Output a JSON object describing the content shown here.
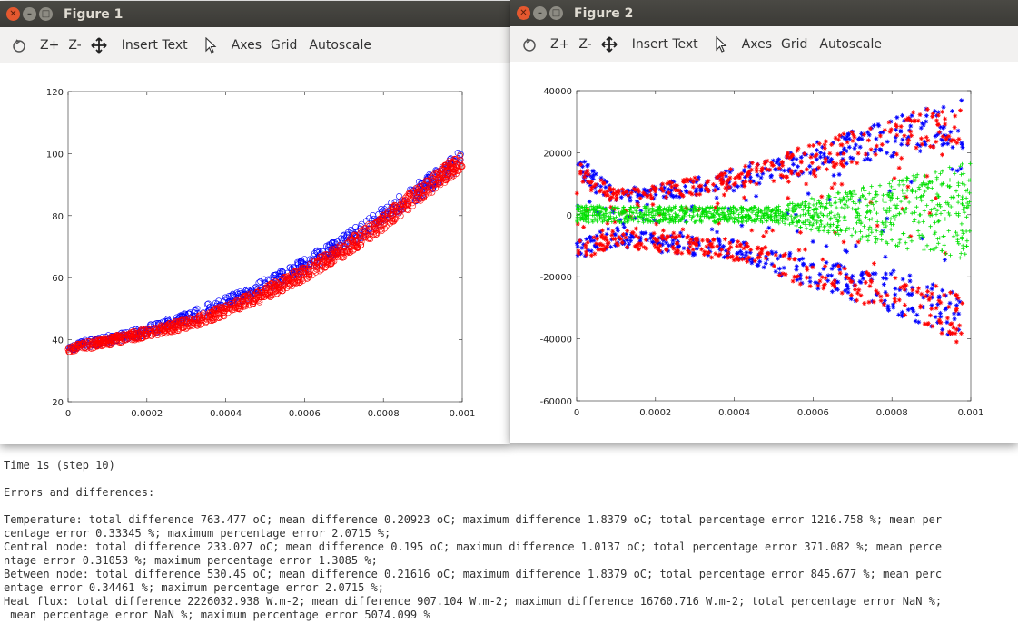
{
  "windows": [
    {
      "title": "Figure 1",
      "toolbar": {
        "zoom_in": "Z+",
        "zoom_out": "Z-",
        "insert_text": "Insert Text",
        "axes": "Axes",
        "grid": "Grid",
        "autoscale": "Autoscale"
      }
    },
    {
      "title": "Figure 2",
      "toolbar": {
        "zoom_in": "Z+",
        "zoom_out": "Z-",
        "insert_text": "Insert Text",
        "axes": "Axes",
        "grid": "Grid",
        "autoscale": "Autoscale"
      }
    }
  ],
  "chart_data": [
    {
      "type": "scatter",
      "xlim": [
        0,
        0.001
      ],
      "ylim": [
        20,
        120
      ],
      "xticks": [
        "0",
        "0.0002",
        "0.0004",
        "0.0006",
        "0.0008",
        "0.001"
      ],
      "yticks": [
        "20",
        "40",
        "60",
        "80",
        "100",
        "120"
      ],
      "grid": false,
      "series": [
        {
          "marker": "circle",
          "color": "#0000ff",
          "x": [
            0,
            0.0001,
            0.0002,
            0.0003,
            0.0004,
            0.0005,
            0.0006,
            0.0007,
            0.0008,
            0.0009,
            0.001
          ],
          "y": [
            37.5,
            40,
            43,
            47,
            52,
            57.5,
            64,
            71.5,
            80,
            89,
            98.5
          ]
        },
        {
          "marker": "circle",
          "color": "#ff0000",
          "x": [
            0,
            0.0001,
            0.0002,
            0.0003,
            0.0004,
            0.0005,
            0.0006,
            0.0007,
            0.0008,
            0.0009,
            0.001
          ],
          "y": [
            37,
            39.5,
            42,
            45,
            49.5,
            55,
            61.5,
            69,
            78,
            88,
            98
          ]
        }
      ]
    },
    {
      "type": "scatter",
      "xlim": [
        0,
        0.001
      ],
      "ylim": [
        -60000,
        40000
      ],
      "xticks": [
        "0",
        "0.0002",
        "0.0004",
        "0.0006",
        "0.0008",
        "0.001"
      ],
      "yticks": [
        "-60000",
        "-40000",
        "-20000",
        "0",
        "20000",
        "40000"
      ],
      "grid": false,
      "series": [
        {
          "marker": "star",
          "color": "#0000ff",
          "x": [
            0,
            0.0001,
            0.0002,
            0.0003,
            0.0004,
            0.0005,
            0.0006,
            0.0007,
            0.0008,
            0.0009,
            0.00098
          ],
          "upper": [
            20000,
            8000,
            10000,
            12000,
            15000,
            19000,
            23000,
            27000,
            31000,
            35000,
            37000
          ],
          "lower": [
            -15000,
            -10000,
            -12000,
            -13000,
            -15000,
            -19000,
            -24000,
            -28000,
            -32000,
            -36000,
            -42000
          ]
        },
        {
          "marker": "star",
          "color": "#ff0000",
          "x": [
            0,
            0.0001,
            0.0002,
            0.0003,
            0.0004,
            0.0005,
            0.0006,
            0.0007,
            0.0008,
            0.0009,
            0.00098
          ],
          "upper": [
            18000,
            8000,
            10000,
            12000,
            15000,
            19000,
            23000,
            27000,
            31000,
            35000,
            37000
          ],
          "lower": [
            -15000,
            -10000,
            -12000,
            -13000,
            -15000,
            -19000,
            -24000,
            -28000,
            -32000,
            -36000,
            -43000
          ]
        },
        {
          "marker": "cross",
          "color": "#00e000",
          "x": [
            0,
            0.0005,
            0.001
          ],
          "upper": [
            3000,
            2500,
            17000
          ],
          "lower": [
            -2500,
            -2500,
            -15000
          ]
        }
      ]
    }
  ],
  "console": {
    "lines": [
      "Time 1s (step 10)",
      "",
      "Errors and differences:",
      "",
      "Temperature: total difference 763.477 oC; mean difference 0.20923 oC; maximum difference 1.8379 oC; total percentage error 1216.758 %; mean per",
      "centage error 0.33345 %; maximum percentage error 2.0715 %;",
      "Central node: total difference 233.027 oC; mean difference 0.195 oC; maximum difference 1.0137 oC; total percentage error 371.082 %; mean perce",
      "ntage error 0.31053 %; maximum percentage error 1.3085 %;",
      "Between node: total difference 530.45 oC; mean difference 0.21616 oC; maximum difference 1.8379 oC; total percentage error 845.677 %; mean perc",
      "entage error 0.34461 %; maximum percentage error 2.0715 %;",
      "Heat flux: total difference 2226032.938 W.m-2; mean difference 907.104 W.m-2; maximum difference 16760.716 W.m-2; total percentage error NaN %;",
      " mean percentage error NaN %; maximum percentage error 5074.099 %"
    ]
  }
}
